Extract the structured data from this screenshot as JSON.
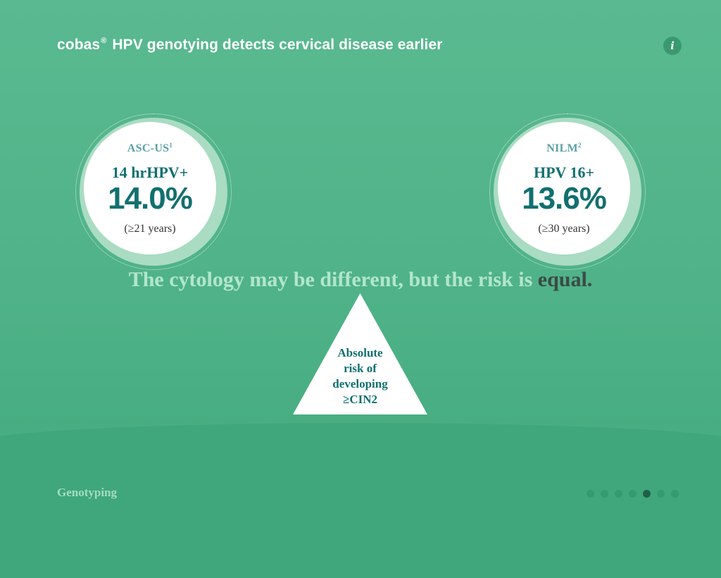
{
  "header": {
    "title_brand": "cobas",
    "title_mark": "®",
    "title_rest": " HPV genotying detects cervical disease earlier",
    "info_label": "i"
  },
  "left_stat": {
    "label": "ASC-US",
    "label_ref": "1",
    "subtitle": "14 hrHPV+",
    "value": "14.0%",
    "age": "(≥21 years)"
  },
  "right_stat": {
    "label": "NILM",
    "label_ref": "2",
    "subtitle": "HPV 16+",
    "value": "13.6%",
    "age": "(≥30 years)"
  },
  "tagline": {
    "text": "The cytology may be different, but the risk is ",
    "emphasis": "equal."
  },
  "fulcrum": {
    "line1": "Absolute",
    "line2": "risk of",
    "line3": "developing",
    "line4": "≥CIN2"
  },
  "footer": {
    "section": "Genotyping",
    "pagination": {
      "total": 7,
      "current": 5
    }
  },
  "colors": {
    "background": "#4fb288",
    "accent_dark": "#12706f",
    "ring": "#a9dcc3",
    "tagline": "#b2e6cd",
    "emphasis": "#3b4a47"
  }
}
